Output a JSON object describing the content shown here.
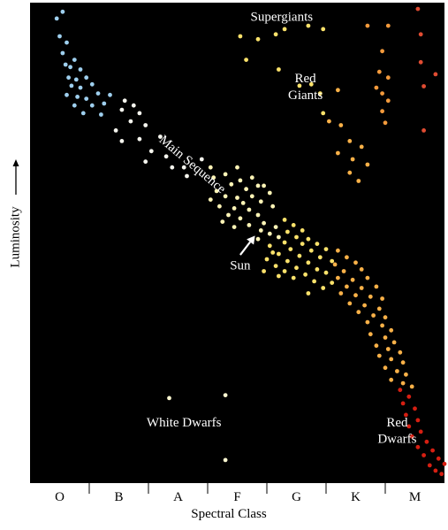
{
  "chart_data": {
    "type": "scatter",
    "title": "",
    "xlabel": "Spectral Class",
    "ylabel": "Luminosity",
    "categories": [
      "O",
      "B",
      "A",
      "F",
      "G",
      "K",
      "M"
    ],
    "xlim": [
      0,
      7
    ],
    "ylim": [
      0,
      100
    ],
    "grid": false,
    "legend": "none",
    "background": "#000000",
    "annotations": [
      {
        "text": "Supergiants",
        "x": 4.25,
        "y": 96.2
      },
      {
        "text": "Red",
        "x": 4.65,
        "y": 83.4
      },
      {
        "text": "Giants",
        "x": 4.65,
        "y": 79.9
      },
      {
        "text": "Main Sequence",
        "x": 2.7,
        "y": 65.7,
        "rotate": 40
      },
      {
        "text": "Sun",
        "x": 3.55,
        "y": 44.5
      },
      {
        "text": "White Dwarfs",
        "x": 2.6,
        "y": 11.8
      },
      {
        "text": "Red",
        "x": 6.2,
        "y": 11.8
      },
      {
        "text": "Dwarfs",
        "x": 6.2,
        "y": 8.4
      }
    ],
    "arrow": {
      "from": [
        3.55,
        47.5
      ],
      "to": [
        3.8,
        51.5
      ]
    },
    "points": [
      {
        "x": 0.45,
        "y": 96.7,
        "c": "#9ecfee"
      },
      {
        "x": 0.55,
        "y": 98.1,
        "c": "#9ecfee"
      },
      {
        "x": 0.5,
        "y": 93.0,
        "c": "#9ecfee"
      },
      {
        "x": 0.62,
        "y": 91.7,
        "c": "#9ecfee"
      },
      {
        "x": 0.55,
        "y": 89.5,
        "c": "#9ecfee"
      },
      {
        "x": 0.75,
        "y": 88.1,
        "c": "#9ecfee"
      },
      {
        "x": 0.6,
        "y": 87.1,
        "c": "#9ecfee"
      },
      {
        "x": 0.68,
        "y": 86.6,
        "c": "#9ecfee"
      },
      {
        "x": 0.85,
        "y": 86.1,
        "c": "#9ecfee"
      },
      {
        "x": 0.65,
        "y": 84.4,
        "c": "#9ecfee"
      },
      {
        "x": 0.78,
        "y": 84.0,
        "c": "#9ecfee"
      },
      {
        "x": 0.95,
        "y": 84.4,
        "c": "#9ecfee"
      },
      {
        "x": 0.7,
        "y": 82.7,
        "c": "#9ecfee"
      },
      {
        "x": 0.85,
        "y": 82.3,
        "c": "#9ecfee"
      },
      {
        "x": 1.05,
        "y": 83.0,
        "c": "#9ecfee"
      },
      {
        "x": 0.62,
        "y": 80.8,
        "c": "#9ecfee"
      },
      {
        "x": 0.8,
        "y": 80.4,
        "c": "#9ecfee"
      },
      {
        "x": 0.95,
        "y": 80.0,
        "c": "#9ecfee"
      },
      {
        "x": 1.15,
        "y": 81.1,
        "c": "#9ecfee"
      },
      {
        "x": 1.35,
        "y": 80.8,
        "c": "#9ecfee"
      },
      {
        "x": 0.75,
        "y": 78.6,
        "c": "#9ecfee"
      },
      {
        "x": 1.05,
        "y": 78.6,
        "c": "#9ecfee"
      },
      {
        "x": 1.25,
        "y": 79.0,
        "c": "#9ecfee"
      },
      {
        "x": 0.9,
        "y": 77.0,
        "c": "#9ecfee"
      },
      {
        "x": 1.2,
        "y": 76.7,
        "c": "#9ecfee"
      },
      {
        "x": 1.6,
        "y": 79.6,
        "c": "#f5f5ee"
      },
      {
        "x": 1.75,
        "y": 78.6,
        "c": "#f5f5ee"
      },
      {
        "x": 1.55,
        "y": 77.7,
        "c": "#f5f5ee"
      },
      {
        "x": 1.85,
        "y": 77.0,
        "c": "#f5f5ee"
      },
      {
        "x": 1.7,
        "y": 75.3,
        "c": "#f5f5ee"
      },
      {
        "x": 1.95,
        "y": 74.5,
        "c": "#f5f5ee"
      },
      {
        "x": 1.45,
        "y": 73.4,
        "c": "#f5f5ee"
      },
      {
        "x": 1.55,
        "y": 71.2,
        "c": "#f5f5ee"
      },
      {
        "x": 1.85,
        "y": 71.6,
        "c": "#f5f5ee"
      },
      {
        "x": 2.2,
        "y": 72.1,
        "c": "#f5f5ee"
      },
      {
        "x": 2.05,
        "y": 69.1,
        "c": "#f5f5ee"
      },
      {
        "x": 2.3,
        "y": 68.0,
        "c": "#f5f5ee"
      },
      {
        "x": 1.95,
        "y": 66.9,
        "c": "#f5f5ee"
      },
      {
        "x": 2.4,
        "y": 65.7,
        "c": "#f5f5ee"
      },
      {
        "x": 2.6,
        "y": 65.7,
        "c": "#f5f5ee"
      },
      {
        "x": 2.65,
        "y": 63.9,
        "c": "#f5f5ee"
      },
      {
        "x": 2.9,
        "y": 67.4,
        "c": "#f5f5ee"
      },
      {
        "x": 3.05,
        "y": 65.7,
        "c": "#fdf4b6"
      },
      {
        "x": 3.1,
        "y": 63.6,
        "c": "#fdf4b6"
      },
      {
        "x": 3.3,
        "y": 64.3,
        "c": "#fdf4b6"
      },
      {
        "x": 3.5,
        "y": 65.7,
        "c": "#fdf4b6"
      },
      {
        "x": 3.55,
        "y": 63.0,
        "c": "#fdf4b6"
      },
      {
        "x": 3.75,
        "y": 63.6,
        "c": "#fdf4b6"
      },
      {
        "x": 3.4,
        "y": 62.2,
        "c": "#fdf4b6"
      },
      {
        "x": 3.85,
        "y": 61.9,
        "c": "#fdf4b6"
      },
      {
        "x": 3.15,
        "y": 60.8,
        "c": "#fdf4b6"
      },
      {
        "x": 3.65,
        "y": 61.2,
        "c": "#fdf4b6"
      },
      {
        "x": 3.95,
        "y": 61.9,
        "c": "#fdf4b6"
      },
      {
        "x": 3.3,
        "y": 59.7,
        "c": "#fdf4b6"
      },
      {
        "x": 3.5,
        "y": 59.4,
        "c": "#fdf4b6"
      },
      {
        "x": 3.75,
        "y": 59.7,
        "c": "#fdf4b6"
      },
      {
        "x": 4.05,
        "y": 60.4,
        "c": "#fdf4b6"
      },
      {
        "x": 3.05,
        "y": 59.0,
        "c": "#fdf4b6"
      },
      {
        "x": 3.6,
        "y": 58.3,
        "c": "#fdf4b6"
      },
      {
        "x": 3.9,
        "y": 58.6,
        "c": "#fdf4b6"
      },
      {
        "x": 3.2,
        "y": 57.6,
        "c": "#fdf4b6"
      },
      {
        "x": 3.45,
        "y": 57.2,
        "c": "#fdf4b6"
      },
      {
        "x": 3.7,
        "y": 56.9,
        "c": "#fdf4b6"
      },
      {
        "x": 4.1,
        "y": 57.6,
        "c": "#fdf4b6"
      },
      {
        "x": 3.35,
        "y": 55.8,
        "c": "#fdf4b6"
      },
      {
        "x": 3.55,
        "y": 55.1,
        "c": "#fdf4b6"
      },
      {
        "x": 3.85,
        "y": 55.8,
        "c": "#fdf4b6"
      },
      {
        "x": 3.25,
        "y": 54.4,
        "c": "#fdf4b6"
      },
      {
        "x": 3.7,
        "y": 53.7,
        "c": "#fdf4b6"
      },
      {
        "x": 3.95,
        "y": 54.1,
        "c": "#fdf4b6"
      },
      {
        "x": 3.45,
        "y": 53.3,
        "c": "#fdf4b6"
      },
      {
        "x": 3.9,
        "y": 52.6,
        "c": "#fdf4b6"
      },
      {
        "x": 4.15,
        "y": 53.3,
        "c": "#fdf4b6"
      },
      {
        "x": 4.05,
        "y": 51.9,
        "c": "#fdf4b6"
      },
      {
        "x": 3.85,
        "y": 50.8,
        "c": "#fdf4b6"
      },
      {
        "x": 4.2,
        "y": 51.2,
        "c": "#fdf4b6"
      },
      {
        "x": 4.3,
        "y": 54.8,
        "c": "#fbe26b"
      },
      {
        "x": 4.45,
        "y": 53.7,
        "c": "#fbe26b"
      },
      {
        "x": 4.6,
        "y": 52.6,
        "c": "#fbe26b"
      },
      {
        "x": 4.35,
        "y": 52.3,
        "c": "#fbe26b"
      },
      {
        "x": 4.5,
        "y": 51.2,
        "c": "#fbe26b"
      },
      {
        "x": 4.7,
        "y": 50.8,
        "c": "#fbe26b"
      },
      {
        "x": 4.3,
        "y": 50.1,
        "c": "#fbe26b"
      },
      {
        "x": 4.6,
        "y": 49.8,
        "c": "#fbe26b"
      },
      {
        "x": 4.85,
        "y": 49.8,
        "c": "#fbe26b"
      },
      {
        "x": 4.05,
        "y": 49.4,
        "c": "#fbe26b"
      },
      {
        "x": 4.4,
        "y": 48.7,
        "c": "#fbe26b"
      },
      {
        "x": 4.75,
        "y": 48.4,
        "c": "#fbe26b"
      },
      {
        "x": 5.0,
        "y": 48.7,
        "c": "#fbe26b"
      },
      {
        "x": 4.2,
        "y": 47.7,
        "c": "#fbe26b"
      },
      {
        "x": 4.55,
        "y": 47.3,
        "c": "#fbe26b"
      },
      {
        "x": 4.9,
        "y": 47.0,
        "c": "#fbe26b"
      },
      {
        "x": 4.0,
        "y": 46.6,
        "c": "#fbe26b"
      },
      {
        "x": 4.35,
        "y": 46.2,
        "c": "#fbe26b"
      },
      {
        "x": 4.7,
        "y": 45.9,
        "c": "#fbe26b"
      },
      {
        "x": 5.1,
        "y": 46.2,
        "c": "#fbe26b"
      },
      {
        "x": 4.15,
        "y": 45.2,
        "c": "#fbe26b"
      },
      {
        "x": 4.5,
        "y": 44.8,
        "c": "#fbe26b"
      },
      {
        "x": 4.85,
        "y": 44.5,
        "c": "#fbe26b"
      },
      {
        "x": 4.3,
        "y": 44.1,
        "c": "#fbe26b"
      },
      {
        "x": 4.65,
        "y": 43.4,
        "c": "#fbe26b"
      },
      {
        "x": 5.0,
        "y": 43.8,
        "c": "#fbe26b"
      },
      {
        "x": 4.45,
        "y": 42.7,
        "c": "#fbe26b"
      },
      {
        "x": 4.8,
        "y": 42.0,
        "c": "#fbe26b"
      },
      {
        "x": 5.1,
        "y": 41.7,
        "c": "#fbe26b"
      },
      {
        "x": 4.95,
        "y": 40.6,
        "c": "#fbe26b"
      },
      {
        "x": 4.7,
        "y": 39.5,
        "c": "#fbe26b"
      },
      {
        "x": 4.1,
        "y": 48.0,
        "c": "#fbe26b"
      },
      {
        "x": 4.2,
        "y": 43.1,
        "c": "#fbe26b"
      },
      {
        "x": 3.95,
        "y": 44.1,
        "c": "#fbe26b"
      },
      {
        "x": 5.2,
        "y": 48.4,
        "c": "#f9b148"
      },
      {
        "x": 5.35,
        "y": 47.0,
        "c": "#f9b148"
      },
      {
        "x": 5.15,
        "y": 45.5,
        "c": "#f9b148"
      },
      {
        "x": 5.5,
        "y": 45.9,
        "c": "#f9b148"
      },
      {
        "x": 5.3,
        "y": 44.1,
        "c": "#f9b148"
      },
      {
        "x": 5.6,
        "y": 44.5,
        "c": "#f9b148"
      },
      {
        "x": 5.2,
        "y": 42.7,
        "c": "#f9b148"
      },
      {
        "x": 5.45,
        "y": 42.3,
        "c": "#f9b148"
      },
      {
        "x": 5.7,
        "y": 42.7,
        "c": "#f9b148"
      },
      {
        "x": 5.35,
        "y": 40.9,
        "c": "#f9b148"
      },
      {
        "x": 5.6,
        "y": 40.6,
        "c": "#f9b148"
      },
      {
        "x": 5.85,
        "y": 40.9,
        "c": "#f9b148"
      },
      {
        "x": 5.25,
        "y": 39.5,
        "c": "#f9b148"
      },
      {
        "x": 5.5,
        "y": 39.1,
        "c": "#f9b148"
      },
      {
        "x": 5.75,
        "y": 38.8,
        "c": "#f9b148"
      },
      {
        "x": 5.95,
        "y": 38.4,
        "c": "#f9b148"
      },
      {
        "x": 5.4,
        "y": 37.4,
        "c": "#f9b148"
      },
      {
        "x": 5.65,
        "y": 37.0,
        "c": "#f9b148"
      },
      {
        "x": 5.9,
        "y": 36.3,
        "c": "#f9b148"
      },
      {
        "x": 5.55,
        "y": 35.6,
        "c": "#f9b148"
      },
      {
        "x": 5.8,
        "y": 34.9,
        "c": "#f9b148"
      },
      {
        "x": 6.0,
        "y": 34.5,
        "c": "#f9b148"
      },
      {
        "x": 5.7,
        "y": 33.5,
        "c": "#f9b148"
      },
      {
        "x": 5.95,
        "y": 32.8,
        "c": "#f9b148"
      },
      {
        "x": 6.1,
        "y": 31.8,
        "c": "#f9b148"
      },
      {
        "x": 5.75,
        "y": 31.0,
        "c": "#f9b148"
      },
      {
        "x": 6.0,
        "y": 30.3,
        "c": "#f9b148"
      },
      {
        "x": 6.15,
        "y": 29.3,
        "c": "#f9b148"
      },
      {
        "x": 5.85,
        "y": 28.6,
        "c": "#f9b148"
      },
      {
        "x": 6.05,
        "y": 27.9,
        "c": "#f9b148"
      },
      {
        "x": 6.25,
        "y": 27.2,
        "c": "#f9b148"
      },
      {
        "x": 5.9,
        "y": 26.5,
        "c": "#f9b148"
      },
      {
        "x": 6.1,
        "y": 25.8,
        "c": "#f9b148"
      },
      {
        "x": 6.3,
        "y": 25.1,
        "c": "#f9b148"
      },
      {
        "x": 6.0,
        "y": 24.0,
        "c": "#f9b148"
      },
      {
        "x": 6.2,
        "y": 23.3,
        "c": "#f9b148"
      },
      {
        "x": 6.35,
        "y": 22.6,
        "c": "#f9b148"
      },
      {
        "x": 6.1,
        "y": 21.5,
        "c": "#f9b148"
      },
      {
        "x": 6.3,
        "y": 20.8,
        "c": "#f9b148"
      },
      {
        "x": 6.45,
        "y": 20.1,
        "c": "#f9b148"
      },
      {
        "x": 6.25,
        "y": 19.4,
        "c": "#d61f12"
      },
      {
        "x": 6.4,
        "y": 18.0,
        "c": "#d61f12"
      },
      {
        "x": 6.3,
        "y": 16.6,
        "c": "#d61f12"
      },
      {
        "x": 6.5,
        "y": 15.5,
        "c": "#d61f12"
      },
      {
        "x": 6.35,
        "y": 14.2,
        "c": "#d61f12"
      },
      {
        "x": 6.55,
        "y": 13.1,
        "c": "#d61f12"
      },
      {
        "x": 6.4,
        "y": 11.8,
        "c": "#d61f12"
      },
      {
        "x": 6.6,
        "y": 10.7,
        "c": "#d61f12"
      },
      {
        "x": 6.45,
        "y": 9.7,
        "c": "#d61f12"
      },
      {
        "x": 6.7,
        "y": 8.6,
        "c": "#d61f12"
      },
      {
        "x": 6.55,
        "y": 7.5,
        "c": "#d61f12"
      },
      {
        "x": 6.8,
        "y": 6.8,
        "c": "#d61f12"
      },
      {
        "x": 6.65,
        "y": 5.8,
        "c": "#d61f12"
      },
      {
        "x": 6.9,
        "y": 5.1,
        "c": "#d61f12"
      },
      {
        "x": 7.0,
        "y": 4.0,
        "c": "#d61f12"
      },
      {
        "x": 6.75,
        "y": 3.7,
        "c": "#d61f12"
      },
      {
        "x": 6.85,
        "y": 2.6,
        "c": "#d61f12"
      },
      {
        "x": 6.95,
        "y": 1.9,
        "c": "#d61f12"
      },
      {
        "x": 3.55,
        "y": 93.0,
        "c": "#fbe26b"
      },
      {
        "x": 3.85,
        "y": 92.4,
        "c": "#fbe26b"
      },
      {
        "x": 4.15,
        "y": 93.4,
        "c": "#fbe26b"
      },
      {
        "x": 4.3,
        "y": 94.5,
        "c": "#fbe26b"
      },
      {
        "x": 4.7,
        "y": 95.2,
        "c": "#fbe26b"
      },
      {
        "x": 4.95,
        "y": 94.5,
        "c": "#fbe26b"
      },
      {
        "x": 3.65,
        "y": 88.1,
        "c": "#fbe26b"
      },
      {
        "x": 4.2,
        "y": 86.1,
        "c": "#fbe26b"
      },
      {
        "x": 4.55,
        "y": 82.7,
        "c": "#fbe26b"
      },
      {
        "x": 4.75,
        "y": 83.0,
        "c": "#fbe26b"
      },
      {
        "x": 4.9,
        "y": 81.1,
        "c": "#fbe26b"
      },
      {
        "x": 4.95,
        "y": 77.0,
        "c": "#fbe26b"
      },
      {
        "x": 5.2,
        "y": 81.8,
        "c": "#f9b148"
      },
      {
        "x": 5.05,
        "y": 75.3,
        "c": "#f9b148"
      },
      {
        "x": 5.25,
        "y": 74.5,
        "c": "#f9b148"
      },
      {
        "x": 5.4,
        "y": 71.2,
        "c": "#f9b148"
      },
      {
        "x": 5.6,
        "y": 70.0,
        "c": "#f9b148"
      },
      {
        "x": 5.2,
        "y": 68.7,
        "c": "#f9b148"
      },
      {
        "x": 5.45,
        "y": 67.4,
        "c": "#f9b148"
      },
      {
        "x": 5.7,
        "y": 66.3,
        "c": "#f9b148"
      },
      {
        "x": 5.55,
        "y": 62.9,
        "c": "#f9b148"
      },
      {
        "x": 5.4,
        "y": 64.6,
        "c": "#f9b148"
      },
      {
        "x": 5.7,
        "y": 95.2,
        "c": "#f39a3c"
      },
      {
        "x": 6.05,
        "y": 95.2,
        "c": "#f39a3c"
      },
      {
        "x": 5.95,
        "y": 89.9,
        "c": "#f39a3c"
      },
      {
        "x": 5.9,
        "y": 85.6,
        "c": "#f39a3c"
      },
      {
        "x": 6.05,
        "y": 84.4,
        "c": "#f39a3c"
      },
      {
        "x": 5.85,
        "y": 82.3,
        "c": "#f39a3c"
      },
      {
        "x": 5.95,
        "y": 81.1,
        "c": "#f39a3c"
      },
      {
        "x": 6.05,
        "y": 79.6,
        "c": "#f39a3c"
      },
      {
        "x": 5.95,
        "y": 77.4,
        "c": "#f39a3c"
      },
      {
        "x": 6.0,
        "y": 75.0,
        "c": "#f39a3c"
      },
      {
        "x": 6.55,
        "y": 98.7,
        "c": "#e14c32"
      },
      {
        "x": 6.6,
        "y": 93.4,
        "c": "#e14c32"
      },
      {
        "x": 6.6,
        "y": 87.6,
        "c": "#e14c32"
      },
      {
        "x": 6.85,
        "y": 85.1,
        "c": "#e14c32"
      },
      {
        "x": 6.65,
        "y": 82.6,
        "c": "#e14c32"
      },
      {
        "x": 6.65,
        "y": 73.4,
        "c": "#e14c32"
      },
      {
        "x": 2.35,
        "y": 17.7,
        "c": "#fbf7d0"
      },
      {
        "x": 3.3,
        "y": 18.3,
        "c": "#fbf7d0"
      },
      {
        "x": 3.3,
        "y": 4.8,
        "c": "#fbf7d0"
      }
    ]
  }
}
